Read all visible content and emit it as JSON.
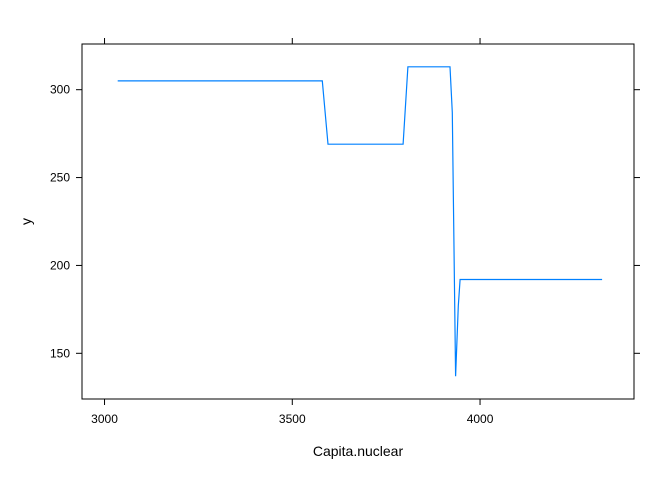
{
  "chart_data": {
    "type": "line",
    "title": "",
    "xlabel": "Capita.nuclear",
    "ylabel": "y",
    "xlim": [
      2940,
      4410
    ],
    "ylim": [
      124,
      326
    ],
    "grid": false,
    "x_ticks": [
      3000,
      3500,
      4000
    ],
    "y_ticks": [
      150,
      200,
      250,
      300
    ],
    "x_tick_labels": [
      "3000",
      "3500",
      "4000"
    ],
    "y_tick_labels": [
      "150",
      "200",
      "250",
      "300"
    ],
    "line_color": "#0080ff",
    "series": [
      {
        "x": [
          3035,
          3580,
          3595,
          3795,
          3808,
          3920,
          3926,
          3935,
          3942,
          3947,
          4325
        ],
        "y": [
          305,
          305,
          269,
          269,
          313,
          313,
          287,
          137,
          177,
          192,
          192
        ]
      }
    ]
  }
}
